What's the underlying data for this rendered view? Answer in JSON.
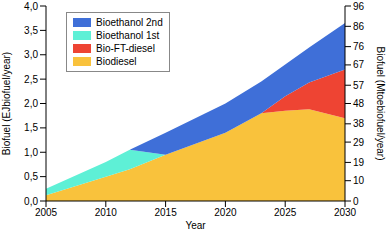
{
  "chart_data": {
    "type": "area",
    "stacked": true,
    "x": [
      2005,
      2010,
      2012,
      2015,
      2020,
      2023,
      2025,
      2027,
      2030
    ],
    "xlim": [
      2005,
      2030
    ],
    "xticks": [
      2005,
      2010,
      2015,
      2020,
      2025,
      2030
    ],
    "x_label": "Year",
    "y_label": "Biofuel (EJbiofuel/year)",
    "y2_label": "Biofuel (Mtoebiofuel/year)",
    "ylim": [
      0,
      4
    ],
    "yticks": [
      {
        "value": 0,
        "label": "0,0"
      },
      {
        "value": 0.5,
        "label": "0,5"
      },
      {
        "value": 1,
        "label": "1,0"
      },
      {
        "value": 1.5,
        "label": "1,5"
      },
      {
        "value": 2,
        "label": "2,0"
      },
      {
        "value": 2.5,
        "label": "2,5"
      },
      {
        "value": 3,
        "label": "3,0"
      },
      {
        "value": 3.5,
        "label": "3,5"
      },
      {
        "value": 4,
        "label": "4,0"
      }
    ],
    "y2lim": [
      0,
      96
    ],
    "y2ticks": [
      0,
      10,
      19,
      29,
      38,
      48,
      57,
      67,
      76,
      86,
      96
    ],
    "legend": "upper left",
    "series": [
      {
        "name": "Biodiesel",
        "color": "#f9c23c",
        "values": [
          0.12,
          0.5,
          0.65,
          0.95,
          1.4,
          1.8,
          1.85,
          1.88,
          1.7
        ]
      },
      {
        "name": "Bio-FT-diesel",
        "color": "#ee4433",
        "values": [
          0,
          0,
          0,
          0,
          0,
          0,
          0.3,
          0.55,
          1.0
        ]
      },
      {
        "name": "Bioethanol 1st",
        "color": "#5ef0d6",
        "values": [
          0.13,
          0.3,
          0.4,
          0,
          0,
          0,
          0,
          0,
          0
        ]
      },
      {
        "name": "Bioethanol 2nd",
        "color": "#3f6fd8",
        "values": [
          0,
          0,
          0,
          0.45,
          0.6,
          0.65,
          0.65,
          0.72,
          0.95
        ]
      }
    ]
  }
}
